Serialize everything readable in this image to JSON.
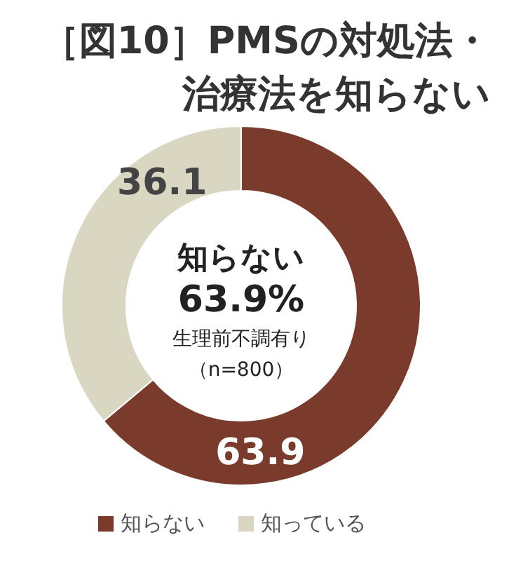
{
  "chart_data": {
    "type": "donut",
    "title": "［図10］PMSの対処法・治療法を知らない",
    "categories": [
      "知らない",
      "知っている"
    ],
    "values": [
      63.9,
      36.1
    ],
    "colors": [
      "#7b3b2c",
      "#d9d6c1"
    ],
    "data_labels": true,
    "legend": "bottom",
    "annotations": [
      "知らない",
      "63.9%",
      "生理前不調有り",
      "（n=800）"
    ]
  }
}
